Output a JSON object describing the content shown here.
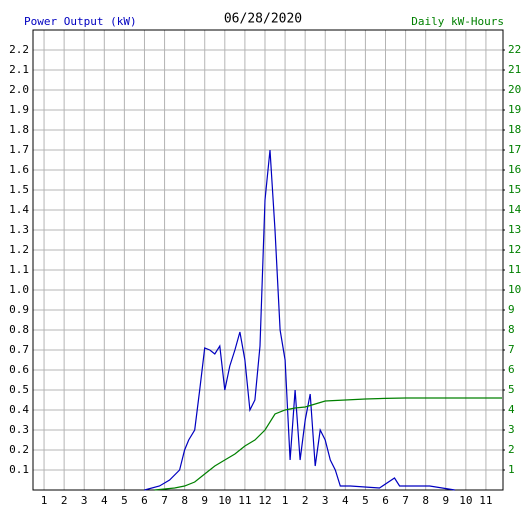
{
  "chart_data": {
    "type": "line",
    "title": "06/28/2020",
    "y_label": "Power Output (kW)",
    "y2_label": "Daily kW-Hours",
    "grid": true,
    "xlim": [
      0.45,
      23.85
    ],
    "xticks": [
      1,
      2,
      3,
      4,
      5,
      6,
      7,
      8,
      9,
      10,
      11,
      12,
      {
        "value": 13,
        "label": "1"
      },
      {
        "value": 14,
        "label": "2"
      },
      {
        "value": 15,
        "label": "3"
      },
      {
        "value": 16,
        "label": "4"
      },
      {
        "value": 17,
        "label": "5"
      },
      {
        "value": 18,
        "label": "6"
      },
      {
        "value": 19,
        "label": "7"
      },
      {
        "value": 20,
        "label": "8"
      },
      {
        "value": 21,
        "label": "9"
      },
      {
        "value": 22,
        "label": "10"
      },
      {
        "value": 23,
        "label": "11"
      }
    ],
    "ylim": [
      0,
      2.3
    ],
    "yticks": [
      0.1,
      0.2,
      0.3,
      0.4,
      0.5,
      0.6,
      0.7,
      0.8,
      0.9,
      {
        "value": 1,
        "label": "1.0"
      },
      1.1,
      1.2,
      1.3,
      1.4,
      1.5,
      1.6,
      1.7,
      1.8,
      1.9,
      {
        "value": 2,
        "label": "2.0"
      },
      2.1,
      2.2
    ],
    "y2lim": [
      0,
      23
    ],
    "y2ticks": [
      1,
      2,
      3,
      4,
      5,
      6,
      7,
      8,
      9,
      10,
      11,
      12,
      13,
      14,
      15,
      16,
      17,
      18,
      19,
      20,
      21,
      22
    ],
    "series": [
      {
        "name": "Power Output (kW)",
        "color": "#0000c0",
        "x": [
          6,
          6.75,
          7.25,
          7.75,
          8,
          8.2,
          8.5,
          8.75,
          9,
          9.25,
          9.5,
          9.75,
          10,
          10.25,
          10.5,
          10.75,
          11,
          11.25,
          11.5,
          11.75,
          12,
          12.25,
          12.5,
          12.75,
          13,
          13.25,
          13.5,
          13.75,
          14,
          14.25,
          14.5,
          14.75,
          15,
          15.25,
          15.5,
          15.75,
          16.25,
          17.7,
          18.45,
          18.7,
          20.2,
          21.45
        ],
        "values": [
          0,
          0.02,
          0.05,
          0.1,
          0.2,
          0.25,
          0.3,
          0.5,
          0.71,
          0.7,
          0.68,
          0.72,
          0.5,
          0.62,
          0.7,
          0.79,
          0.65,
          0.4,
          0.45,
          0.72,
          1.45,
          1.7,
          1.3,
          0.8,
          0.65,
          0.15,
          0.5,
          0.15,
          0.35,
          0.48,
          0.12,
          0.3,
          0.25,
          0.15,
          0.1,
          0.02,
          0.02,
          0.01,
          0.06,
          0.02,
          0.02,
          0
        ]
      },
      {
        "name": "Daily kW-Hours",
        "color": "#008000",
        "axis": "y2",
        "x": [
          6.5,
          7.5,
          8,
          8.5,
          9,
          9.5,
          10,
          10.5,
          11,
          11.5,
          12,
          12.5,
          13,
          13.5,
          14,
          14.5,
          15,
          16,
          17,
          18,
          19,
          23.8
        ],
        "values": [
          0,
          0.1,
          0.2,
          0.4,
          0.8,
          1.2,
          1.5,
          1.8,
          2.2,
          2.5,
          3.0,
          3.8,
          4.0,
          4.1,
          4.15,
          4.3,
          4.45,
          4.5,
          4.55,
          4.58,
          4.6,
          4.6
        ]
      }
    ]
  }
}
